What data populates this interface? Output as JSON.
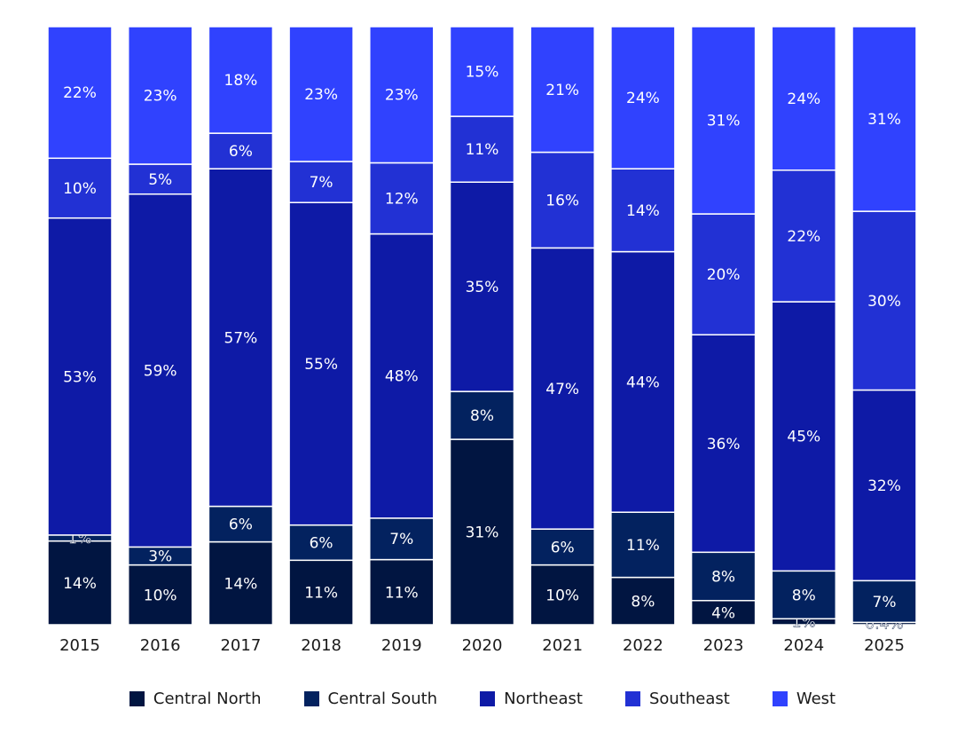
{
  "chart_data": {
    "type": "bar",
    "stacked": true,
    "normalized": true,
    "categories": [
      "2015",
      "2016",
      "2017",
      "2018",
      "2019",
      "2020",
      "2021",
      "2022",
      "2023",
      "2024",
      "2025"
    ],
    "series": [
      {
        "name": "Central North",
        "color": "#011541",
        "values": [
          14,
          10,
          14,
          11,
          11,
          31,
          10,
          8,
          4,
          1,
          0.4
        ],
        "labels": [
          "14%",
          "10%",
          "14%",
          "11%",
          "11%",
          "31%",
          "10%",
          "8%",
          "4%",
          "1%",
          "0.4%"
        ]
      },
      {
        "name": "Central South",
        "color": "#03225f",
        "values": [
          1,
          3,
          6,
          6,
          7,
          8,
          6,
          11,
          8,
          8,
          7
        ],
        "labels": [
          "1%",
          "3%",
          "6%",
          "6%",
          "7%",
          "8%",
          "6%",
          "11%",
          "8%",
          "8%",
          "7%"
        ]
      },
      {
        "name": "Northeast",
        "color": "#0e1aa6",
        "values": [
          53,
          59,
          57,
          55,
          48,
          35,
          47,
          44,
          36,
          45,
          32
        ],
        "labels": [
          "53%",
          "59%",
          "57%",
          "55%",
          "48%",
          "35%",
          "47%",
          "44%",
          "36%",
          "45%",
          "32%"
        ]
      },
      {
        "name": "Southeast",
        "color": "#2231d4",
        "values": [
          10,
          5,
          6,
          7,
          12,
          11,
          16,
          14,
          20,
          22,
          30
        ],
        "labels": [
          "10%",
          "5%",
          "6%",
          "7%",
          "12%",
          "11%",
          "16%",
          "14%",
          "20%",
          "22%",
          "30%"
        ]
      },
      {
        "name": "West",
        "color": "#3042fe",
        "values": [
          22,
          23,
          18,
          23,
          23,
          15,
          21,
          24,
          31,
          24,
          31
        ],
        "labels": [
          "22%",
          "23%",
          "18%",
          "23%",
          "23%",
          "15%",
          "21%",
          "24%",
          "31%",
          "24%",
          "31%"
        ]
      }
    ],
    "ylim": [
      0,
      100
    ],
    "grid": false,
    "legend_position": "bottom"
  }
}
